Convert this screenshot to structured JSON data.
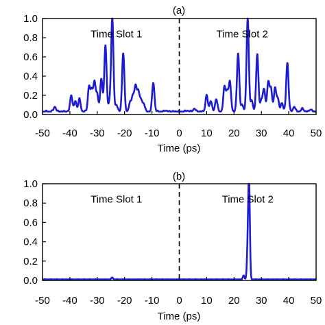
{
  "colors": {
    "series": "#1c1cd2",
    "axis": "#000000",
    "divider": "#000000"
  },
  "chart_data": [
    {
      "type": "line",
      "panel_label": "(a)",
      "xlabel": "Time (ps)",
      "ylabel": "",
      "xlim": [
        -50,
        50
      ],
      "ylim": [
        0,
        1.0
      ],
      "xticks": [
        "-50",
        "-40",
        "-30",
        "-20",
        "-10",
        "0",
        "10",
        "20",
        "30",
        "40",
        "50"
      ],
      "yticks": [
        "0.0",
        "0.2",
        "0.4",
        "0.6",
        "0.8",
        "1.0"
      ],
      "divider_x": 0,
      "annotations": [
        {
          "text": "Time Slot 1",
          "x": -23,
          "y": 0.84
        },
        {
          "text": "Time Slot 2",
          "x": 23,
          "y": 0.84
        }
      ],
      "baseline": 0.03,
      "peaks": [
        {
          "x": -45.5,
          "y": 0.08
        },
        {
          "x": -39.5,
          "y": 0.2
        },
        {
          "x": -38,
          "y": 0.14
        },
        {
          "x": -36.5,
          "y": 0.16
        },
        {
          "x": -33,
          "y": 0.29
        },
        {
          "x": -32,
          "y": 0.24
        },
        {
          "x": -31,
          "y": 0.33
        },
        {
          "x": -30,
          "y": 0.2
        },
        {
          "x": -28.5,
          "y": 0.37
        },
        {
          "x": -27,
          "y": 0.72
        },
        {
          "x": -25.5,
          "y": 0.12
        },
        {
          "x": -24.5,
          "y": 1.0
        },
        {
          "x": -23,
          "y": 0.1
        },
        {
          "x": -20.5,
          "y": 0.64
        },
        {
          "x": -18,
          "y": 0.12
        },
        {
          "x": -17,
          "y": 0.19
        },
        {
          "x": -16,
          "y": 0.29
        },
        {
          "x": -15,
          "y": 0.24
        },
        {
          "x": -14,
          "y": 0.15
        },
        {
          "x": -13,
          "y": 0.11
        },
        {
          "x": -9.5,
          "y": 0.33
        },
        {
          "x": -5,
          "y": 0.04
        },
        {
          "x": 3,
          "y": 0.04
        },
        {
          "x": 5.5,
          "y": 0.06
        },
        {
          "x": 10,
          "y": 0.2
        },
        {
          "x": 11.5,
          "y": 0.14
        },
        {
          "x": 13.5,
          "y": 0.16
        },
        {
          "x": 16.5,
          "y": 0.28
        },
        {
          "x": 17.5,
          "y": 0.23
        },
        {
          "x": 18.5,
          "y": 0.33
        },
        {
          "x": 21.5,
          "y": 0.64
        },
        {
          "x": 23,
          "y": 0.1
        },
        {
          "x": 25,
          "y": 1.0
        },
        {
          "x": 26.5,
          "y": 0.14
        },
        {
          "x": 28.5,
          "y": 0.62
        },
        {
          "x": 30,
          "y": 0.15
        },
        {
          "x": 31,
          "y": 0.26
        },
        {
          "x": 32.5,
          "y": 0.33
        },
        {
          "x": 33.5,
          "y": 0.27
        },
        {
          "x": 35,
          "y": 0.27
        },
        {
          "x": 36,
          "y": 0.16
        },
        {
          "x": 37.5,
          "y": 0.12
        },
        {
          "x": 39.5,
          "y": 0.54
        },
        {
          "x": 42,
          "y": 0.08
        },
        {
          "x": 45,
          "y": 0.06
        },
        {
          "x": 48,
          "y": 0.05
        }
      ]
    },
    {
      "type": "line",
      "panel_label": "(b)",
      "xlabel": "Time (ps)",
      "ylabel": "",
      "xlim": [
        -50,
        50
      ],
      "ylim": [
        0,
        1.0
      ],
      "xticks": [
        "-50",
        "-40",
        "-30",
        "-20",
        "-10",
        "0",
        "10",
        "20",
        "30",
        "40",
        "50"
      ],
      "yticks": [
        "0.0",
        "0.2",
        "0.4",
        "0.6",
        "0.8",
        "1.0"
      ],
      "divider_x": 0,
      "annotations": [
        {
          "text": "Time Slot 1",
          "x": -23,
          "y": 0.84
        },
        {
          "text": "Time Slot 2",
          "x": 25,
          "y": 0.84
        }
      ],
      "baseline": 0.01,
      "peaks": [
        {
          "x": -24.5,
          "y": 0.03
        },
        {
          "x": 23.5,
          "y": 0.05
        },
        {
          "x": 25,
          "y": 0.3
        },
        {
          "x": 25.5,
          "y": 1.0
        }
      ]
    }
  ]
}
